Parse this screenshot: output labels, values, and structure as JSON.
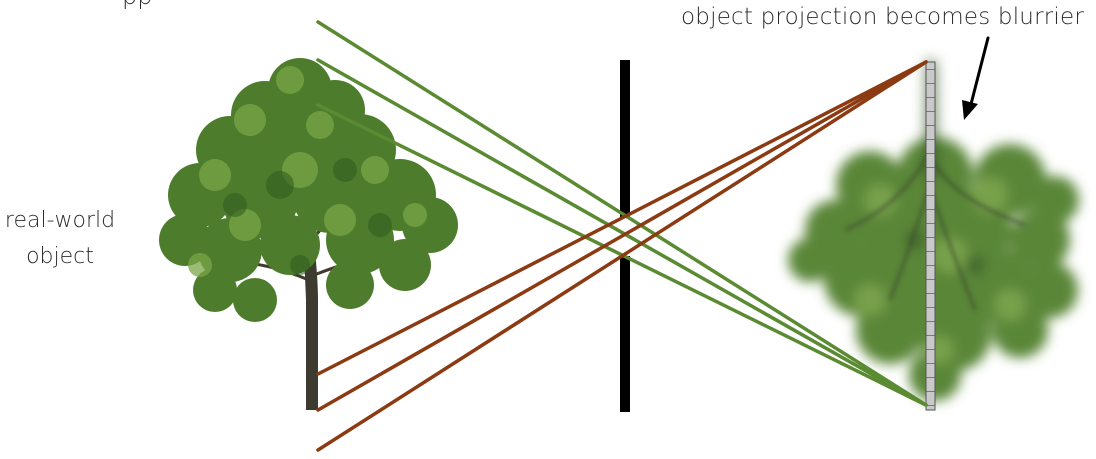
{
  "labels": {
    "top_left_partial": "pp",
    "top_right": "object projection becomes blurrier",
    "left_object": "real-world object"
  },
  "colors": {
    "green_rays": "#5a8a32",
    "brown_rays": "#8b3a12",
    "barrier": "#000000",
    "sensor_fill": "#bfbfbf",
    "tree_foliage": "#4f7f2e",
    "tree_trunk": "#3d3a30",
    "arrow": "#000000"
  },
  "icons": {
    "tree": "tree-icon",
    "blurred_tree": "blurred-inverted-tree-icon",
    "arrow": "arrow-down-icon"
  }
}
